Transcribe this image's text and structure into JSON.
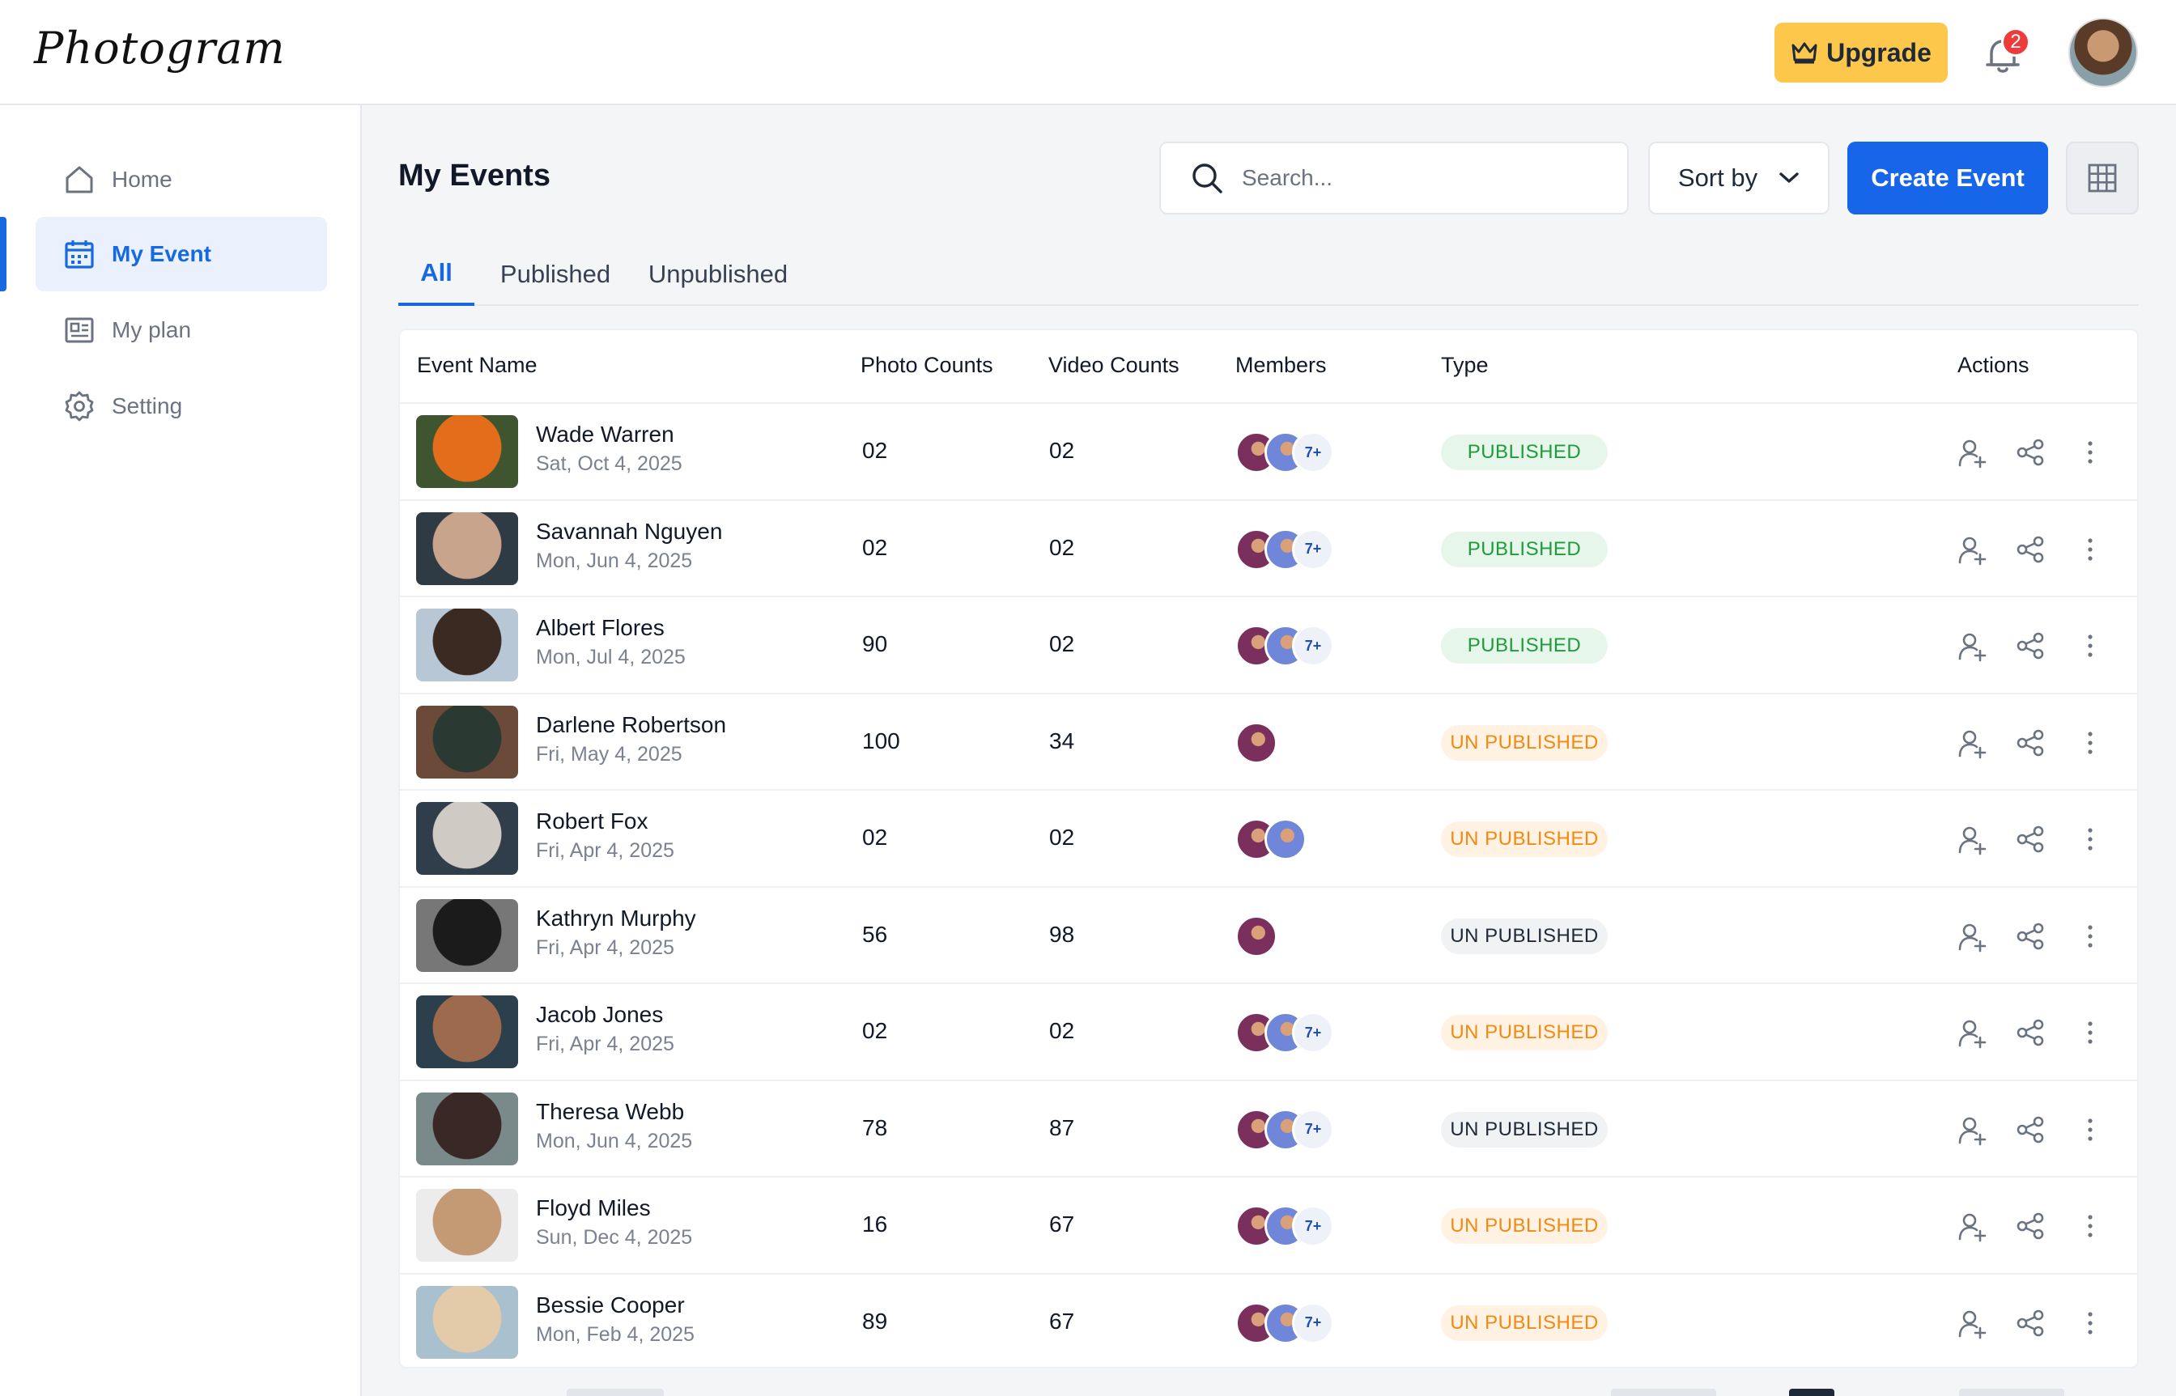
{
  "app": {
    "logo": "Photogram"
  },
  "header": {
    "upgrade_label": "Upgrade",
    "notification_count": "2"
  },
  "sidebar": {
    "items": [
      {
        "label": "Home",
        "icon": "home-icon"
      },
      {
        "label": "My Event",
        "icon": "calendar-icon",
        "active": true
      },
      {
        "label": "My plan",
        "icon": "plan-icon"
      },
      {
        "label": "Setting",
        "icon": "gear-icon"
      }
    ]
  },
  "main": {
    "title": "My Events",
    "search_placeholder": "Search...",
    "sort_label": "Sort by",
    "create_label": "Create Event",
    "tabs": [
      {
        "label": "All"
      },
      {
        "label": "Published"
      },
      {
        "label": "Unpublished"
      }
    ]
  },
  "table": {
    "headers": [
      "Event Name",
      "Photo Counts",
      "Video Counts",
      "Members",
      "Type",
      "Actions"
    ],
    "rows": [
      {
        "name": "Wade Warren",
        "date": "Sat, Oct 4, 2025",
        "photos": "02",
        "videos": "02",
        "members": 3,
        "more": "7+",
        "type": "PUBLISHED",
        "status": "pub"
      },
      {
        "name": "Savannah Nguyen",
        "date": "Mon, Jun 4, 2025",
        "photos": "02",
        "videos": "02",
        "members": 3,
        "more": "7+",
        "type": "PUBLISHED",
        "status": "pub"
      },
      {
        "name": "Albert Flores",
        "date": "Mon, Jul 4, 2025",
        "photos": "90",
        "videos": "02",
        "members": 3,
        "more": "7+",
        "type": "PUBLISHED",
        "status": "pub"
      },
      {
        "name": "Darlene Robertson",
        "date": "Fri, May 4, 2025",
        "photos": "100",
        "videos": "34",
        "members": 1,
        "more": "",
        "type": "UN PUBLISHED",
        "status": "unpub"
      },
      {
        "name": "Robert Fox",
        "date": "Fri, Apr 4, 2025",
        "photos": "02",
        "videos": "02",
        "members": 2,
        "more": "",
        "type": "UN PUBLISHED",
        "status": "unpub"
      },
      {
        "name": "Kathryn Murphy",
        "date": "Fri, Apr 4, 2025",
        "photos": "56",
        "videos": "98",
        "members": 1,
        "more": "",
        "type": "UN PUBLISHED",
        "status": "unpub-gray"
      },
      {
        "name": "Jacob Jones",
        "date": "Fri, Apr 4, 2025",
        "photos": "02",
        "videos": "02",
        "members": 3,
        "more": "7+",
        "type": "UN PUBLISHED",
        "status": "unpub"
      },
      {
        "name": "Theresa Webb",
        "date": "Mon, Jun 4, 2025",
        "photos": "78",
        "videos": "87",
        "members": 3,
        "more": "7+",
        "type": "UN PUBLISHED",
        "status": "unpub-gray"
      },
      {
        "name": "Floyd Miles",
        "date": "Sun, Dec 4, 2025",
        "photos": "16",
        "videos": "67",
        "members": 3,
        "more": "7+",
        "type": "UN PUBLISHED",
        "status": "unpub"
      },
      {
        "name": "Bessie Cooper",
        "date": "Mon, Feb 4, 2025",
        "photos": "89",
        "videos": "67",
        "members": 3,
        "more": "7+",
        "type": "UN PUBLISHED",
        "status": "unpub"
      }
    ]
  },
  "colors": {
    "primary": "#1765e8",
    "upgrade": "#fcc74a",
    "published_text": "#1e9b3b",
    "unpublished_text": "#f08a14"
  }
}
